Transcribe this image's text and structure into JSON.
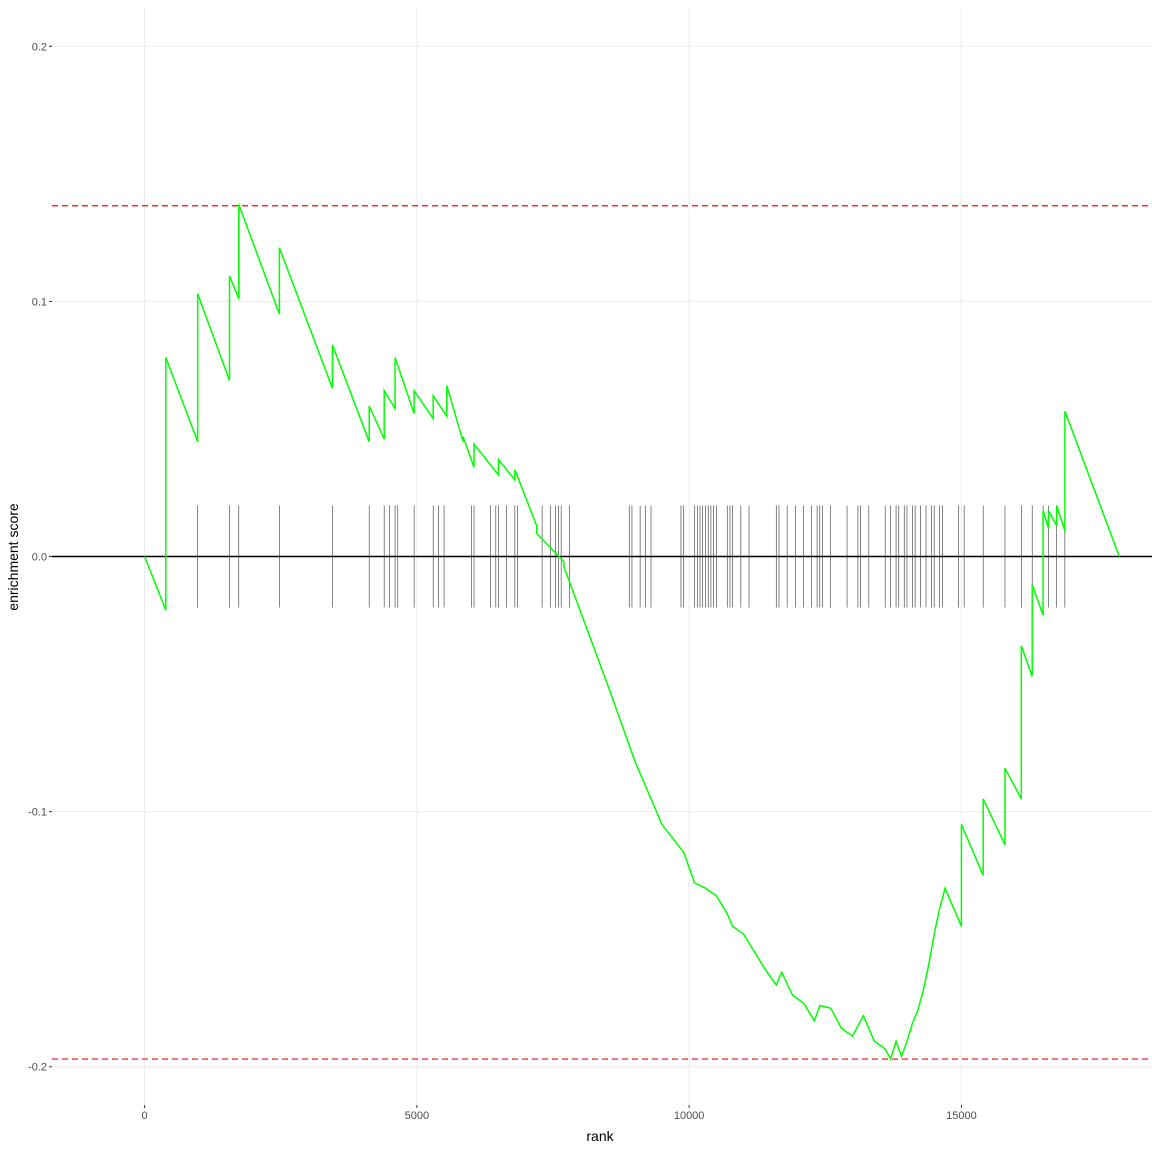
{
  "chart_data": {
    "type": "line",
    "xlabel": "rank",
    "ylabel": "enrichment score",
    "xlim": [
      -1700,
      18500
    ],
    "ylim": [
      -0.215,
      0.215
    ],
    "x_ticks": [
      0,
      5000,
      10000,
      15000
    ],
    "x_tick_labels": [
      "0",
      "5000",
      "10000",
      "15000"
    ],
    "y_ticks": [
      -0.2,
      -0.1,
      0.0,
      0.1,
      0.2
    ],
    "y_tick_labels": [
      "-0.2",
      "-0.1",
      "0.0",
      "0.1",
      "0.2"
    ],
    "grid": true,
    "colors": {
      "line": "#00ff00",
      "threshold": "#ff0000",
      "zero": "#000000",
      "hits": "#333333",
      "grid": "#ebebeb"
    },
    "thresholds": [
      0.1375,
      -0.197
    ],
    "hit_band": [
      -0.02,
      0.02
    ],
    "series": [
      {
        "x": [
          0,
          390,
          390,
          975,
          975,
          1560,
          1560,
          1730,
          1730,
          2475,
          2475,
          3450,
          3450,
          4125,
          4125,
          4400,
          4400,
          4600,
          4600,
          4950,
          4950,
          5300,
          5300,
          5550,
          5550,
          5850,
          5850,
          6050,
          6050,
          6500,
          6500,
          6800,
          6800,
          7200,
          7200,
          7700,
          7700,
          8500,
          9000,
          9500,
          9900,
          10100,
          10300,
          10500,
          10700,
          10800,
          11000,
          11200,
          11400,
          11600,
          11700,
          11900,
          12100,
          12300,
          12400,
          12600,
          12800,
          13000,
          13200,
          13400,
          13600,
          13700,
          13800,
          13900,
          14000,
          14100,
          14200,
          14300,
          14400,
          14500,
          14600,
          14700,
          14800,
          14900,
          15000,
          15000,
          15400,
          15400,
          15800,
          15800,
          16100,
          16100,
          16300,
          16300,
          16500,
          16500,
          16600,
          16600,
          16750,
          16750,
          16900,
          16900,
          17900
        ],
        "y": [
          0.0,
          -0.021,
          0.078,
          0.045,
          0.103,
          0.069,
          0.11,
          0.101,
          0.138,
          0.095,
          0.121,
          0.066,
          0.083,
          0.045,
          0.059,
          0.046,
          0.065,
          0.058,
          0.078,
          0.056,
          0.065,
          0.054,
          0.063,
          0.055,
          0.067,
          0.045,
          0.047,
          0.035,
          0.044,
          0.032,
          0.038,
          0.03,
          0.034,
          0.012,
          0.009,
          -0.002,
          -0.004,
          -0.05,
          -0.08,
          -0.105,
          -0.116,
          -0.128,
          -0.13,
          -0.133,
          -0.14,
          -0.145,
          -0.148,
          -0.155,
          -0.162,
          -0.168,
          -0.163,
          -0.172,
          -0.175,
          -0.182,
          -0.176,
          -0.177,
          -0.185,
          -0.188,
          -0.18,
          -0.19,
          -0.193,
          -0.197,
          -0.19,
          -0.196,
          -0.19,
          -0.183,
          -0.178,
          -0.17,
          -0.16,
          -0.148,
          -0.138,
          -0.13,
          -0.135,
          -0.14,
          -0.145,
          -0.105,
          -0.125,
          -0.095,
          -0.113,
          -0.083,
          -0.095,
          -0.035,
          -0.047,
          -0.011,
          -0.023,
          0.018,
          0.011,
          0.018,
          0.012,
          0.02,
          0.01,
          0.057,
          0.0
        ]
      }
    ],
    "hits": [
      390,
      975,
      1560,
      1730,
      2475,
      3450,
      4125,
      4400,
      4500,
      4600,
      4650,
      4950,
      5300,
      5400,
      5500,
      6000,
      6050,
      6350,
      6450,
      6500,
      6650,
      6800,
      6850,
      7300,
      7450,
      7550,
      7600,
      7650,
      7800,
      8900,
      8950,
      9100,
      9200,
      9300,
      9850,
      9900,
      10100,
      10150,
      10200,
      10250,
      10300,
      10350,
      10400,
      10450,
      10500,
      10700,
      10750,
      10800,
      10950,
      11100,
      11600,
      11650,
      11800,
      11950,
      12100,
      12250,
      12350,
      12400,
      12450,
      12600,
      12900,
      13100,
      13150,
      13300,
      13600,
      13700,
      13800,
      13850,
      13950,
      14000,
      14100,
      14150,
      14250,
      14350,
      14450,
      14500,
      14600,
      14650,
      14950,
      15050,
      15400,
      15800,
      16100,
      16300,
      16500,
      16600,
      16750,
      16900
    ]
  }
}
